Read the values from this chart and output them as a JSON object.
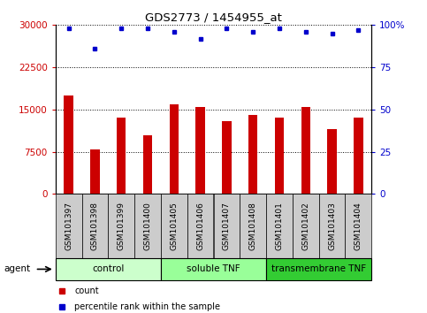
{
  "title": "GDS2773 / 1454955_at",
  "samples": [
    "GSM101397",
    "GSM101398",
    "GSM101399",
    "GSM101400",
    "GSM101405",
    "GSM101406",
    "GSM101407",
    "GSM101408",
    "GSM101401",
    "GSM101402",
    "GSM101403",
    "GSM101404"
  ],
  "bar_values": [
    17500,
    8000,
    13500,
    10500,
    16000,
    15500,
    13000,
    14000,
    13500,
    15500,
    11500,
    13500
  ],
  "dot_values": [
    98,
    86,
    98,
    98,
    96,
    92,
    98,
    96,
    98,
    96,
    95,
    97
  ],
  "bar_color": "#cc0000",
  "dot_color": "#0000cc",
  "ylim_left": [
    0,
    30000
  ],
  "ylim_right": [
    0,
    100
  ],
  "yticks_left": [
    0,
    7500,
    15000,
    22500,
    30000
  ],
  "yticks_right": [
    0,
    25,
    50,
    75,
    100
  ],
  "groups": [
    {
      "label": "control",
      "start": 0,
      "end": 4,
      "color": "#ccffcc"
    },
    {
      "label": "soluble TNF",
      "start": 4,
      "end": 8,
      "color": "#99ff99"
    },
    {
      "label": "transmembrane TNF",
      "start": 8,
      "end": 12,
      "color": "#33cc33"
    }
  ],
  "agent_label": "agent",
  "legend_items": [
    {
      "label": "count",
      "color": "#cc0000"
    },
    {
      "label": "percentile rank within the sample",
      "color": "#0000cc"
    }
  ],
  "bar_color_left": "#cc0000",
  "tick_color_right": "#0000cc",
  "tick_color_left": "#cc0000",
  "background_color": "#ffffff",
  "xtick_bg": "#cccccc",
  "bar_width": 0.35
}
